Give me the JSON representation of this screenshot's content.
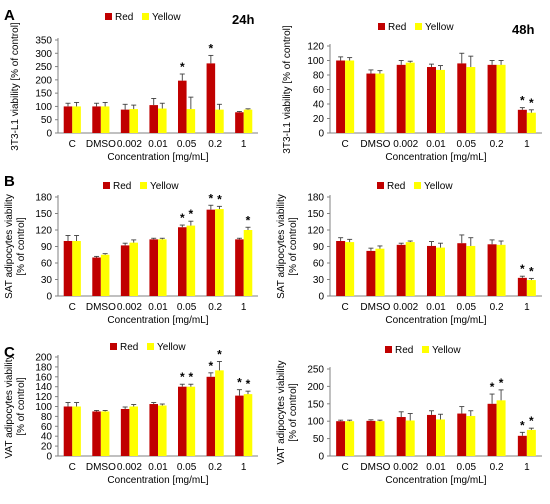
{
  "colors": {
    "red": "#C00000",
    "yellow": "#FFFF00",
    "axis": "#808080",
    "error": "#404040"
  },
  "legend": {
    "red": "Red",
    "yellow": "Yellow"
  },
  "panel_letters": [
    "A",
    "B",
    "C"
  ],
  "time_labels": [
    "24h",
    "48h"
  ],
  "chart_data": [
    {
      "type": "bar",
      "panel": "A",
      "time": "24h",
      "categories": [
        "C",
        "DMSO",
        "0.002",
        "0.01",
        "0.05",
        "0.2",
        "1"
      ],
      "xlabel": "Concentration [mg/mL]",
      "ylabel": [
        "3T3-L1 viability [% of control]"
      ],
      "yticks": [
        0,
        50,
        100,
        150,
        200,
        250,
        300,
        350
      ],
      "ylim": [
        0,
        350
      ],
      "legend_placement": "top-center",
      "series": [
        {
          "name": "Red",
          "values": [
            100,
            100,
            88,
            105,
            197,
            262,
            78
          ],
          "errors": [
            12,
            12,
            20,
            25,
            25,
            30,
            3
          ],
          "sig": [
            "",
            "",
            "",
            "",
            "*",
            "*",
            ""
          ]
        },
        {
          "name": "Yellow",
          "values": [
            100,
            100,
            90,
            92,
            90,
            88,
            88
          ],
          "errors": [
            15,
            15,
            15,
            20,
            45,
            20,
            3
          ],
          "sig": [
            "",
            "",
            "",
            "",
            "",
            "",
            ""
          ]
        }
      ]
    },
    {
      "type": "bar",
      "panel": "A",
      "time": "48h",
      "categories": [
        "C",
        "DMSO",
        "0.002",
        "0.01",
        "0.05",
        "0.2",
        "1"
      ],
      "xlabel": "Concentration [mg/mL]",
      "ylabel": [
        "3T3-L1 viability [% of control]"
      ],
      "yticks": [
        0,
        20,
        40,
        60,
        80,
        100,
        120
      ],
      "ylim": [
        0,
        120
      ],
      "legend_placement": "top-center",
      "series": [
        {
          "name": "Red",
          "values": [
            100,
            82,
            94,
            91,
            96,
            94,
            32
          ],
          "errors": [
            5,
            5,
            6,
            4,
            14,
            6,
            3
          ],
          "sig": [
            "",
            "",
            "",
            "",
            "",
            "",
            "*"
          ]
        },
        {
          "name": "Yellow",
          "values": [
            100,
            82,
            97,
            87,
            91,
            94,
            28
          ],
          "errors": [
            4,
            4,
            2,
            6,
            15,
            6,
            4
          ],
          "sig": [
            "",
            "",
            "",
            "",
            "",
            "",
            "*"
          ]
        }
      ]
    },
    {
      "type": "bar",
      "panel": "B",
      "time": "24h",
      "categories": [
        "C",
        "DMSO",
        "0.002",
        "0.01",
        "0.05",
        "0.2",
        "1"
      ],
      "xlabel": "Concentration [mg/mL]",
      "ylabel": [
        "SAT adipocytes viability",
        "[% of control]"
      ],
      "yticks": [
        0,
        30,
        60,
        90,
        120,
        150,
        180
      ],
      "ylim": [
        0,
        180
      ],
      "legend_placement": "top-center",
      "series": [
        {
          "name": "Red",
          "values": [
            100,
            70,
            92,
            103,
            125,
            157,
            103
          ],
          "errors": [
            10,
            2,
            4,
            2,
            4,
            8,
            2
          ],
          "sig": [
            "",
            "",
            "",
            "",
            "*",
            "*",
            ""
          ]
        },
        {
          "name": "Yellow",
          "values": [
            100,
            75,
            97,
            103,
            128,
            158,
            120
          ],
          "errors": [
            10,
            2,
            5,
            2,
            8,
            5,
            5
          ],
          "sig": [
            "",
            "",
            "",
            "",
            "*",
            "*",
            "*"
          ]
        }
      ]
    },
    {
      "type": "bar",
      "panel": "B",
      "time": "48h",
      "categories": [
        "C",
        "DMSO",
        "0.002",
        "0.01",
        "0.05",
        "0.2",
        "1"
      ],
      "xlabel": "Concentration [mg/mL]",
      "ylabel": [
        "SAT adipocytes viability",
        "[% of control]"
      ],
      "yticks": [
        0,
        30,
        60,
        90,
        120,
        150,
        180
      ],
      "ylim": [
        0,
        180
      ],
      "legend_placement": "top-center",
      "series": [
        {
          "name": "Red",
          "values": [
            100,
            82,
            93,
            91,
            96,
            94,
            33
          ],
          "errors": [
            6,
            5,
            3,
            8,
            15,
            8,
            3
          ],
          "sig": [
            "",
            "",
            "",
            "",
            "",
            "",
            "*"
          ]
        },
        {
          "name": "Yellow",
          "values": [
            98,
            86,
            98,
            88,
            91,
            93,
            29
          ],
          "errors": [
            5,
            5,
            2,
            8,
            15,
            7,
            3
          ],
          "sig": [
            "",
            "",
            "",
            "",
            "",
            "",
            "*"
          ]
        }
      ]
    },
    {
      "type": "bar",
      "panel": "C",
      "time": "24h",
      "categories": [
        "C",
        "DMSO",
        "0.002",
        "0.01",
        "0.05",
        "0.2",
        "1"
      ],
      "xlabel": "Concentration [mg/mL]",
      "ylabel": [
        "VAT adipocytes viability",
        "[% of control]"
      ],
      "yticks": [
        0,
        20,
        40,
        60,
        80,
        100,
        120,
        140,
        160,
        180,
        200
      ],
      "ylim": [
        0,
        200
      ],
      "legend_placement": "top-center",
      "series": [
        {
          "name": "Red",
          "values": [
            100,
            90,
            95,
            105,
            140,
            160,
            122
          ],
          "errors": [
            8,
            2,
            4,
            3,
            5,
            8,
            12
          ],
          "sig": [
            "",
            "",
            "",
            "",
            "*",
            "*",
            "*"
          ]
        },
        {
          "name": "Yellow",
          "values": [
            100,
            90,
            100,
            102,
            140,
            173,
            125
          ],
          "errors": [
            8,
            2,
            4,
            3,
            5,
            18,
            6
          ],
          "sig": [
            "",
            "",
            "",
            "",
            "*",
            "*",
            "*"
          ]
        }
      ]
    },
    {
      "type": "bar",
      "panel": "C",
      "time": "48h",
      "categories": [
        "C",
        "DMSO",
        "0.002",
        "0.01",
        "0.05",
        "0.2",
        "1"
      ],
      "xlabel": "Concentration [mg/mL]",
      "ylabel": [
        "VAT adipocytes viability",
        "[% of control]"
      ],
      "yticks": [
        0,
        50,
        100,
        150,
        200,
        250
      ],
      "ylim": [
        0,
        250
      ],
      "legend_placement": "top-center",
      "series": [
        {
          "name": "Red",
          "values": [
            100,
            101,
            112,
            118,
            122,
            150,
            58
          ],
          "errors": [
            3,
            3,
            15,
            12,
            20,
            28,
            10
          ],
          "sig": [
            "",
            "",
            "",
            "",
            "",
            "*",
            "*"
          ]
        },
        {
          "name": "Yellow",
          "values": [
            100,
            100,
            102,
            105,
            115,
            160,
            75
          ],
          "errors": [
            3,
            3,
            20,
            15,
            15,
            30,
            5
          ],
          "sig": [
            "",
            "",
            "",
            "",
            "",
            "*",
            "*"
          ]
        }
      ]
    }
  ]
}
